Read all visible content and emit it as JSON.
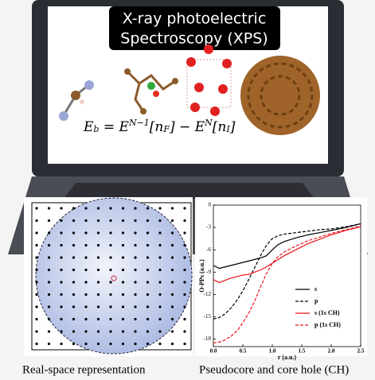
{
  "header": {
    "title_lines": [
      "X-ray photoelectric",
      "Spectroscopy (XPS)"
    ]
  },
  "formula": [
    {
      "text": "E",
      "pos": "base"
    },
    {
      "text": "b",
      "pos": "sub"
    },
    {
      "text": " = E",
      "pos": "base"
    },
    {
      "text": "N−1",
      "pos": "sup"
    },
    {
      "text": "[n",
      "pos": "base"
    },
    {
      "text": "F",
      "pos": "sub"
    },
    {
      "text": "] − E",
      "pos": "base"
    },
    {
      "text": "N",
      "pos": "sup"
    },
    {
      "text": "[n",
      "pos": "base"
    },
    {
      "text": "I",
      "pos": "sub"
    },
    {
      "text": "]",
      "pos": "base"
    }
  ],
  "captions": [
    "Real-space representation",
    "Pseudocore and core hole (CH)"
  ],
  "chart_data": {
    "type": "line",
    "xlabel": "r (a.u.)",
    "ylabel": "O-PPs (a.u.)",
    "x": [
      0,
      0.1,
      0.2,
      0.3,
      0.4,
      0.5,
      0.6,
      0.7,
      0.8,
      0.9,
      1.0,
      1.1,
      1.2,
      1.4,
      1.6,
      1.8,
      2.0,
      2.25,
      2.5
    ],
    "series": [
      {
        "name": "s",
        "color": "#000000",
        "dashed": false,
        "values": [
          -8.1,
          -8.5,
          -8.3,
          -8.1,
          -7.9,
          -7.7,
          -7.5,
          -7.3,
          -7.1,
          -6.8,
          -6.0,
          -5.3,
          -4.9,
          -4.4,
          -4.0,
          -3.7,
          -3.4,
          -3.0,
          -2.5
        ]
      },
      {
        "name": "p",
        "color": "#000000",
        "dashed": true,
        "values": [
          -15.3,
          -15.1,
          -14.6,
          -13.8,
          -12.8,
          -11.5,
          -10.0,
          -8.4,
          -6.8,
          -5.4,
          -4.5,
          -4.1,
          -3.9,
          -3.7,
          -3.5,
          -3.3,
          -3.2,
          -2.9,
          -2.5
        ]
      },
      {
        "name": "s (1s CH)",
        "color": "#e8141b",
        "dashed": false,
        "values": [
          -10.0,
          -10.4,
          -10.1,
          -9.8,
          -9.6,
          -9.4,
          -9.3,
          -9.0,
          -8.7,
          -8.3,
          -7.8,
          -7.3,
          -6.8,
          -6.0,
          -5.2,
          -4.6,
          -4.0,
          -3.4,
          -2.9
        ]
      },
      {
        "name": "p (1s CH)",
        "color": "#e8141b",
        "dashed": true,
        "values": [
          -18.5,
          -18.4,
          -18.1,
          -17.6,
          -16.9,
          -15.8,
          -14.5,
          -12.9,
          -11.0,
          -9.2,
          -7.8,
          -6.9,
          -6.3,
          -5.5,
          -4.8,
          -4.3,
          -3.8,
          -3.3,
          -2.8
        ]
      }
    ],
    "xlim": [
      0,
      2.5
    ],
    "ylim": [
      -19,
      0
    ],
    "xticks": [
      {
        "value": 0,
        "label": "0.0"
      },
      {
        "value": 0.5,
        "label": "0.5"
      },
      {
        "value": 1,
        "label": "1.0"
      },
      {
        "value": 1.5,
        "label": "1.5"
      },
      {
        "value": 2,
        "label": "2.0"
      },
      {
        "value": 2.5,
        "label": "2.5"
      }
    ],
    "yticks": [
      0,
      -3,
      -6,
      -9,
      -12,
      -15,
      -18
    ],
    "legend": "lower right"
  }
}
